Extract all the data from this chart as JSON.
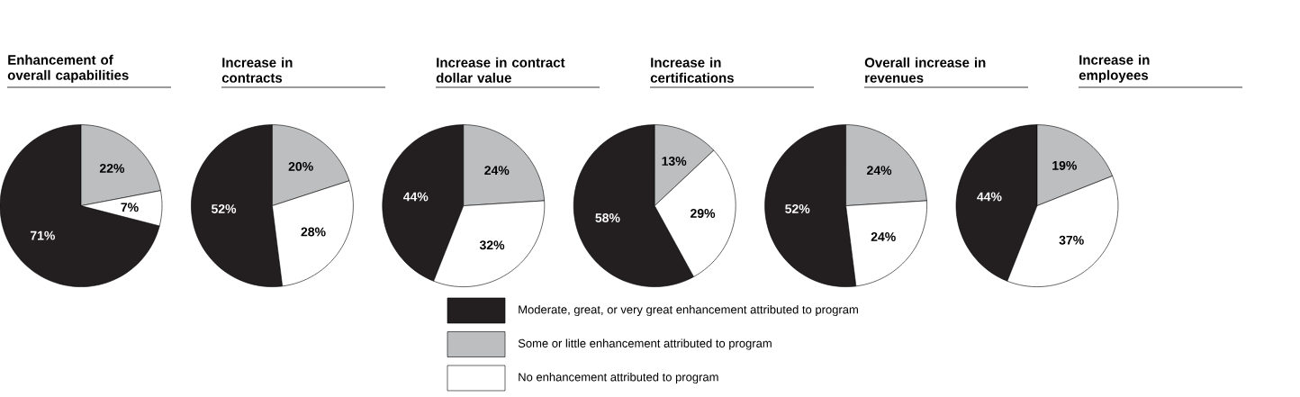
{
  "chart_data": [
    {
      "type": "pie",
      "title": "Enhancement of overall capabilities",
      "categories": [
        "Moderate, great, or very great enhancement attributed to program",
        "Some or little enhancement attributed to program",
        "No enhancement attributed to program"
      ],
      "values": [
        71,
        22,
        7
      ],
      "value_labels": [
        "71%",
        "22%",
        "7%"
      ],
      "colors": [
        "#231f20",
        "#bcbec0",
        "#ffffff"
      ],
      "legend": "bottom"
    },
    {
      "type": "pie",
      "title": "Increase in contracts",
      "values": [
        52,
        20,
        28
      ],
      "value_labels": [
        "52%",
        "20%",
        "28%"
      ],
      "colors": [
        "#231f20",
        "#bcbec0",
        "#ffffff"
      ]
    },
    {
      "type": "pie",
      "title": "Increase in contract dollar value",
      "values": [
        44,
        24,
        32
      ],
      "value_labels": [
        "44%",
        "24%",
        "32%"
      ],
      "colors": [
        "#231f20",
        "#bcbec0",
        "#ffffff"
      ]
    },
    {
      "type": "pie",
      "title": "Increase in certifications",
      "values": [
        58,
        13,
        29
      ],
      "value_labels": [
        "58%",
        "13%",
        "29%"
      ],
      "colors": [
        "#231f20",
        "#bcbec0",
        "#ffffff"
      ]
    },
    {
      "type": "pie",
      "title": "Overall increase in revenues",
      "values": [
        52,
        24,
        24
      ],
      "value_labels": [
        "52%",
        "24%",
        "24%"
      ],
      "colors": [
        "#231f20",
        "#bcbec0",
        "#ffffff"
      ]
    },
    {
      "type": "pie",
      "title": "Increase in employees",
      "values": [
        44,
        19,
        37
      ],
      "value_labels": [
        "44%",
        "19%",
        "37%"
      ],
      "colors": [
        "#231f20",
        "#bcbec0",
        "#ffffff"
      ]
    }
  ]
}
